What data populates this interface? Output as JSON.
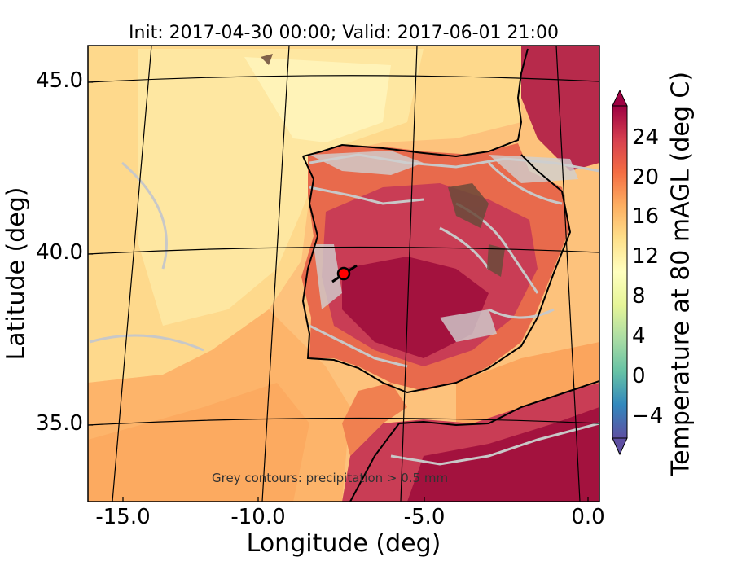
{
  "title": "Init: 2017-04-30 00:00; Valid: 2017-06-01 21:00",
  "axes": {
    "xlabel": "Longitude (deg)",
    "ylabel": "Latitude (deg)",
    "x_ticks": [
      "-15.0",
      "-10.0",
      "-5.0",
      "0.0"
    ],
    "y_ticks": [
      "45.0",
      "40.0",
      "35.0"
    ],
    "x_range": [
      -15.8,
      0.3
    ],
    "y_range": [
      32.7,
      46.1
    ]
  },
  "colorbar": {
    "label": "Temperature at 80 mAGL (deg C)",
    "ticks": [
      "24",
      "20",
      "16",
      "12",
      "8",
      "4",
      "0",
      "−4"
    ],
    "range": [
      -7,
      27
    ],
    "colormap": [
      "#5e4fa2",
      "#3288bd",
      "#66c2a5",
      "#abdda4",
      "#e6f598",
      "#ffffbf",
      "#fee08b",
      "#fdae61",
      "#f46d43",
      "#d53e4f",
      "#9e0142"
    ]
  },
  "annotation": "Grey contours: precipitation > 0.5 mm",
  "marker": {
    "lon": -7.6,
    "lat": 39.4,
    "color": "#ff0000"
  },
  "colors": {
    "ocean_warm": "#fdba72",
    "ocean_cool": "#fee59a",
    "land_hot": "#a3123e",
    "precip_contour": "#c8c8c8",
    "coastline": "#000000"
  }
}
